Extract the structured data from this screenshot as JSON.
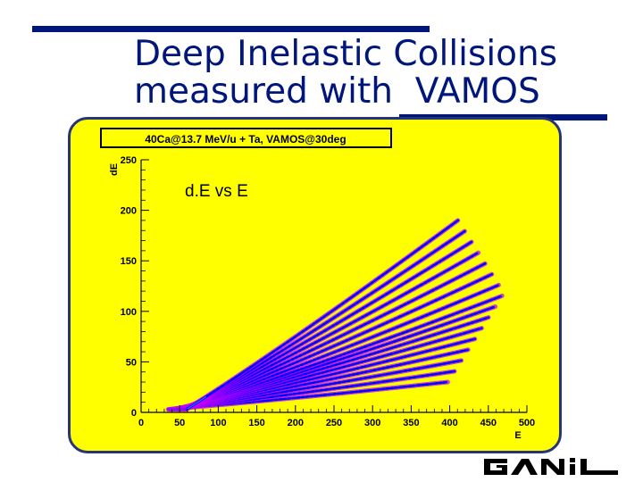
{
  "slide": {
    "title_lines": [
      "Deep Inelastic Collisions",
      "measured with  VAMOS"
    ]
  },
  "chart_data": {
    "type": "heatmap",
    "histogram_title": "40Ca@13.7 MeV/u + Ta, VAMOS@30deg",
    "annotation": "d.E vs E",
    "xlabel": "E",
    "ylabel": "dE",
    "xlim": [
      0,
      500
    ],
    "ylim": [
      0,
      250
    ],
    "x_ticks": [
      0,
      50,
      100,
      150,
      200,
      250,
      300,
      350,
      400,
      450,
      500
    ],
    "y_ticks": [
      0,
      50,
      100,
      150,
      200,
      250
    ],
    "grid": false,
    "description_of_bands": {
      "band_count": 16,
      "start": {
        "E": 35,
        "dE": 3
      },
      "end_E_range": [
        360,
        470
      ],
      "end_dE_range": [
        30,
        190
      ],
      "color_low": "#0000ff",
      "color_mid": "#c400ff",
      "color_high": "#00c8ff"
    }
  },
  "logo": {
    "name": "ganil-logo",
    "text": "GANIL"
  },
  "colors": {
    "slide_blue": "#00167a",
    "panel_yellow": "#ffff00",
    "panel_border": "#26357a"
  }
}
